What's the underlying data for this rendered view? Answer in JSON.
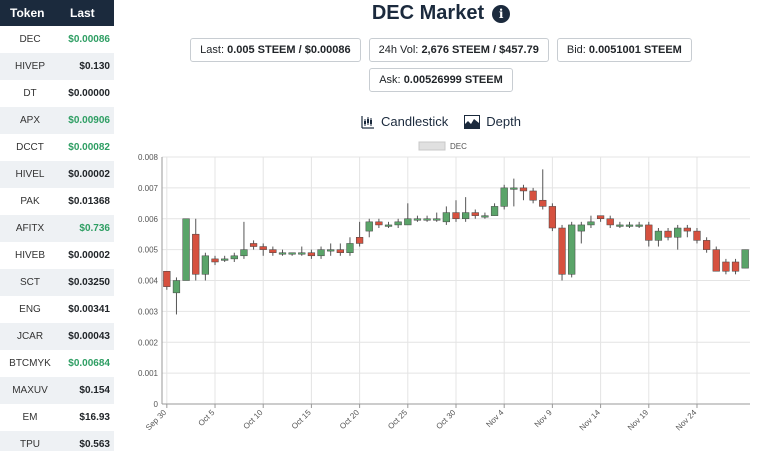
{
  "sidebar": {
    "header": {
      "token": "Token",
      "last": "Last"
    },
    "rows": [
      {
        "token": "DEC",
        "last": "$0.00086",
        "up": true
      },
      {
        "token": "HIVEP",
        "last": "$0.130",
        "up": false
      },
      {
        "token": "DT",
        "last": "$0.00000",
        "up": false
      },
      {
        "token": "APX",
        "last": "$0.00906",
        "up": true
      },
      {
        "token": "DCCT",
        "last": "$0.00082",
        "up": true
      },
      {
        "token": "HIVEL",
        "last": "$0.00002",
        "up": false
      },
      {
        "token": "PAK",
        "last": "$0.01368",
        "up": false
      },
      {
        "token": "AFITX",
        "last": "$0.736",
        "up": true
      },
      {
        "token": "HIVEB",
        "last": "$0.00002",
        "up": false
      },
      {
        "token": "SCT",
        "last": "$0.03250",
        "up": false
      },
      {
        "token": "ENG",
        "last": "$0.00341",
        "up": false
      },
      {
        "token": "JCAR",
        "last": "$0.00043",
        "up": false
      },
      {
        "token": "BTCMYK",
        "last": "$0.00684",
        "up": true
      },
      {
        "token": "MAXUV",
        "last": "$0.154",
        "up": false
      },
      {
        "token": "EM",
        "last": "$16.93",
        "up": false
      },
      {
        "token": "TPU",
        "last": "$0.563",
        "up": false
      }
    ]
  },
  "header": {
    "title": "DEC Market",
    "info_icon": "info-icon"
  },
  "stats": {
    "last_label": "Last:",
    "last_value": "0.005 STEEM / $0.00086",
    "vol_label": "24h Vol:",
    "vol_value": "2,676 STEEM / $457.79",
    "bid_label": "Bid:",
    "bid_value": "0.0051001 STEEM",
    "ask_label": "Ask:",
    "ask_value": "0.00526999 STEEM"
  },
  "chart_tabs": {
    "candlestick": "Candlestick",
    "depth": "Depth",
    "candlestick_icon": "candlestick-chart-icon",
    "depth_icon": "depth-chart-icon"
  },
  "colors": {
    "up": "#5aa469",
    "down": "#d6513f",
    "navy": "#1b2a3d",
    "green_text": "#2e9e63"
  },
  "chart_data": {
    "type": "candlestick",
    "legend": [
      "DEC"
    ],
    "legend_position": "top-center",
    "grid": true,
    "ylim": [
      0,
      0.008
    ],
    "y_ticks": [
      "0",
      "0.001",
      "0.002",
      "0.003",
      "0.004",
      "0.005",
      "0.006",
      "0.007",
      "0.008"
    ],
    "x_ticks": [
      "Sep 30",
      "Oct 5",
      "Oct 10",
      "Oct 15",
      "Oct 20",
      "Oct 25",
      "Oct 30",
      "Nov 4",
      "Nov 9",
      "Nov 14",
      "Nov 19",
      "Nov 24"
    ],
    "candles": [
      {
        "date": "Sep 30",
        "open": 0.0043,
        "close": 0.0038,
        "high": 0.0043,
        "low": 0.0037
      },
      {
        "date": "Oct 1",
        "open": 0.0036,
        "close": 0.004,
        "high": 0.0041,
        "low": 0.0029
      },
      {
        "date": "Oct 2",
        "open": 0.004,
        "close": 0.006,
        "high": 0.006,
        "low": 0.004
      },
      {
        "date": "Oct 3",
        "open": 0.0055,
        "close": 0.0042,
        "high": 0.006,
        "low": 0.004
      },
      {
        "date": "Oct 4",
        "open": 0.0042,
        "close": 0.0048,
        "high": 0.0049,
        "low": 0.004
      },
      {
        "date": "Oct 5",
        "open": 0.0047,
        "close": 0.0046,
        "high": 0.0048,
        "low": 0.0045
      },
      {
        "date": "Oct 6",
        "open": 0.0047,
        "close": 0.0047,
        "high": 0.0048,
        "low": 0.0046
      },
      {
        "date": "Oct 7",
        "open": 0.0047,
        "close": 0.0048,
        "high": 0.0049,
        "low": 0.0046
      },
      {
        "date": "Oct 8",
        "open": 0.0048,
        "close": 0.005,
        "high": 0.0059,
        "low": 0.0047
      },
      {
        "date": "Oct 9",
        "open": 0.0052,
        "close": 0.0051,
        "high": 0.0053,
        "low": 0.005
      },
      {
        "date": "Oct 10",
        "open": 0.0051,
        "close": 0.005,
        "high": 0.0052,
        "low": 0.0048
      },
      {
        "date": "Oct 11",
        "open": 0.005,
        "close": 0.0049,
        "high": 0.0051,
        "low": 0.0048
      },
      {
        "date": "Oct 12",
        "open": 0.0049,
        "close": 0.0049,
        "high": 0.005,
        "low": 0.0048
      },
      {
        "date": "Oct 13",
        "open": 0.0049,
        "close": 0.0049,
        "high": 0.0049,
        "low": 0.0048
      },
      {
        "date": "Oct 14",
        "open": 0.0049,
        "close": 0.0049,
        "high": 0.0051,
        "low": 0.0048
      },
      {
        "date": "Oct 15",
        "open": 0.0049,
        "close": 0.0048,
        "high": 0.005,
        "low": 0.0047
      },
      {
        "date": "Oct 16",
        "open": 0.0048,
        "close": 0.005,
        "high": 0.0051,
        "low": 0.0047
      },
      {
        "date": "Oct 17",
        "open": 0.005,
        "close": 0.005,
        "high": 0.0052,
        "low": 0.0048
      },
      {
        "date": "Oct 18",
        "open": 0.005,
        "close": 0.0049,
        "high": 0.0052,
        "low": 0.0048
      },
      {
        "date": "Oct 19",
        "open": 0.0049,
        "close": 0.0052,
        "high": 0.0054,
        "low": 0.0048
      },
      {
        "date": "Oct 20",
        "open": 0.0054,
        "close": 0.0052,
        "high": 0.0059,
        "low": 0.0051
      },
      {
        "date": "Oct 21",
        "open": 0.0056,
        "close": 0.0059,
        "high": 0.006,
        "low": 0.0054
      },
      {
        "date": "Oct 22",
        "open": 0.0059,
        "close": 0.0058,
        "high": 0.006,
        "low": 0.0057
      },
      {
        "date": "Oct 23",
        "open": 0.0058,
        "close": 0.0058,
        "high": 0.0059,
        "low": 0.0057
      },
      {
        "date": "Oct 24",
        "open": 0.0058,
        "close": 0.0059,
        "high": 0.006,
        "low": 0.0057
      },
      {
        "date": "Oct 25",
        "open": 0.0058,
        "close": 0.006,
        "high": 0.0065,
        "low": 0.0058
      },
      {
        "date": "Oct 26",
        "open": 0.006,
        "close": 0.006,
        "high": 0.0061,
        "low": 0.0059
      },
      {
        "date": "Oct 27",
        "open": 0.006,
        "close": 0.006,
        "high": 0.0061,
        "low": 0.0059
      },
      {
        "date": "Oct 28",
        "open": 0.006,
        "close": 0.006,
        "high": 0.0062,
        "low": 0.0059
      },
      {
        "date": "Oct 29",
        "open": 0.0059,
        "close": 0.0062,
        "high": 0.0064,
        "low": 0.0058
      },
      {
        "date": "Oct 30",
        "open": 0.0062,
        "close": 0.006,
        "high": 0.0066,
        "low": 0.0059
      },
      {
        "date": "Oct 31",
        "open": 0.006,
        "close": 0.0062,
        "high": 0.0067,
        "low": 0.0059
      },
      {
        "date": "Nov 1",
        "open": 0.0062,
        "close": 0.0061,
        "high": 0.0063,
        "low": 0.006
      },
      {
        "date": "Nov 2",
        "open": 0.0061,
        "close": 0.0061,
        "high": 0.0062,
        "low": 0.006
      },
      {
        "date": "Nov 3",
        "open": 0.0061,
        "close": 0.0064,
        "high": 0.0065,
        "low": 0.0061
      },
      {
        "date": "Nov 4",
        "open": 0.0064,
        "close": 0.007,
        "high": 0.0071,
        "low": 0.0063
      },
      {
        "date": "Nov 5",
        "open": 0.007,
        "close": 0.007,
        "high": 0.0073,
        "low": 0.0064
      },
      {
        "date": "Nov 6",
        "open": 0.007,
        "close": 0.0069,
        "high": 0.0071,
        "low": 0.0066
      },
      {
        "date": "Nov 7",
        "open": 0.0069,
        "close": 0.0066,
        "high": 0.007,
        "low": 0.0065
      },
      {
        "date": "Nov 8",
        "open": 0.0066,
        "close": 0.0064,
        "high": 0.0076,
        "low": 0.0063
      },
      {
        "date": "Nov 9",
        "open": 0.0064,
        "close": 0.0057,
        "high": 0.0065,
        "low": 0.0056
      },
      {
        "date": "Nov 10",
        "open": 0.0057,
        "close": 0.0042,
        "high": 0.0058,
        "low": 0.004
      },
      {
        "date": "Nov 11",
        "open": 0.0042,
        "close": 0.0058,
        "high": 0.0059,
        "low": 0.0041
      },
      {
        "date": "Nov 12",
        "open": 0.0056,
        "close": 0.0058,
        "high": 0.0059,
        "low": 0.0052
      },
      {
        "date": "Nov 13",
        "open": 0.0058,
        "close": 0.0059,
        "high": 0.0061,
        "low": 0.0057
      },
      {
        "date": "Nov 14",
        "open": 0.0061,
        "close": 0.006,
        "high": 0.0061,
        "low": 0.0059
      },
      {
        "date": "Nov 15",
        "open": 0.006,
        "close": 0.0058,
        "high": 0.0061,
        "low": 0.0057
      },
      {
        "date": "Nov 16",
        "open": 0.0058,
        "close": 0.0058,
        "high": 0.0059,
        "low": 0.0057
      },
      {
        "date": "Nov 17",
        "open": 0.0058,
        "close": 0.0058,
        "high": 0.0059,
        "low": 0.0057
      },
      {
        "date": "Nov 18",
        "open": 0.0058,
        "close": 0.0058,
        "high": 0.0059,
        "low": 0.0057
      },
      {
        "date": "Nov 19",
        "open": 0.0058,
        "close": 0.0053,
        "high": 0.0059,
        "low": 0.0051
      },
      {
        "date": "Nov 20",
        "open": 0.0053,
        "close": 0.0056,
        "high": 0.0057,
        "low": 0.0051
      },
      {
        "date": "Nov 21",
        "open": 0.0056,
        "close": 0.0054,
        "high": 0.0057,
        "low": 0.0053
      },
      {
        "date": "Nov 22",
        "open": 0.0054,
        "close": 0.0057,
        "high": 0.0058,
        "low": 0.005
      },
      {
        "date": "Nov 23",
        "open": 0.0057,
        "close": 0.0056,
        "high": 0.0058,
        "low": 0.0054
      },
      {
        "date": "Nov 24",
        "open": 0.0056,
        "close": 0.0053,
        "high": 0.0057,
        "low": 0.0052
      },
      {
        "date": "Nov 25",
        "open": 0.0053,
        "close": 0.005,
        "high": 0.0054,
        "low": 0.0049
      },
      {
        "date": "Nov 26",
        "open": 0.005,
        "close": 0.0043,
        "high": 0.0051,
        "low": 0.0043
      },
      {
        "date": "Nov 27",
        "open": 0.0046,
        "close": 0.0043,
        "high": 0.0047,
        "low": 0.0042
      },
      {
        "date": "Nov 28",
        "open": 0.0046,
        "close": 0.0043,
        "high": 0.0047,
        "low": 0.0042
      },
      {
        "date": "Nov 29",
        "open": 0.0044,
        "close": 0.005,
        "high": 0.005,
        "low": 0.0044
      }
    ]
  }
}
